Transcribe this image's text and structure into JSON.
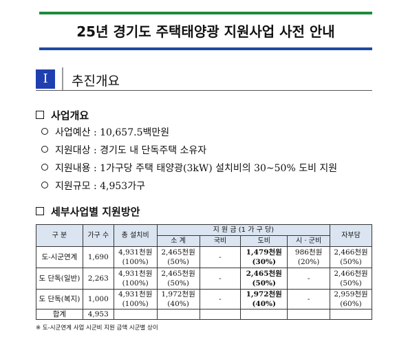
{
  "header": {
    "title": "25년 경기도 주택태양광 지원사업 사전 안내"
  },
  "section": {
    "number": "I",
    "title": "추진개요"
  },
  "overview": {
    "heading": "사업개요",
    "items": [
      "사업예산 : 10,657.5백만원",
      "지원대상 : 경기도 내 단독주택 소유자",
      "지원내용 : 1가구당 주택 태양광(3kW) 설치비의 30~50% 도비 지원",
      "지원규모 : 4,953가구"
    ]
  },
  "plan": {
    "heading": "세부사업별 지원방안"
  },
  "table": {
    "headers": [
      "구 분",
      "가구 수",
      "총 설치비",
      "지 원 금 (1 가 구 당)",
      "자부담"
    ],
    "subheaders": [
      "소 계",
      "국비",
      "도비",
      "시 · 군비"
    ],
    "rows": [
      [
        "도-시군연계",
        "1,690",
        [
          "4,931천원",
          "(100%)"
        ],
        [
          "2,465천원",
          "(50%)"
        ],
        "-",
        [
          "1,479천원",
          "(30%)"
        ],
        [
          "986천원",
          "(20%)"
        ],
        [
          "2,466천원",
          "(50%)"
        ]
      ],
      [
        "도 단독(일반)",
        "2,263",
        [
          "4,931천원",
          "(100%)"
        ],
        [
          "2,465천원",
          "(50%)"
        ],
        "-",
        [
          "2,465천원",
          "(50%)"
        ],
        "-",
        [
          "2,466천원",
          "(50%)"
        ]
      ],
      [
        "도 단독(복지)",
        "1,000",
        [
          "4,931천원",
          "(100%)"
        ],
        [
          "1,972천원",
          "(40%)"
        ],
        "-",
        [
          "1,972천원",
          "(40%)"
        ],
        "-",
        [
          "2,959천원",
          "(60%)"
        ]
      ]
    ],
    "total": [
      "합계",
      "4,953"
    ]
  },
  "footnote": "※ 도-시군연계 사업 시군비 지원 금액 시군별 상이"
}
